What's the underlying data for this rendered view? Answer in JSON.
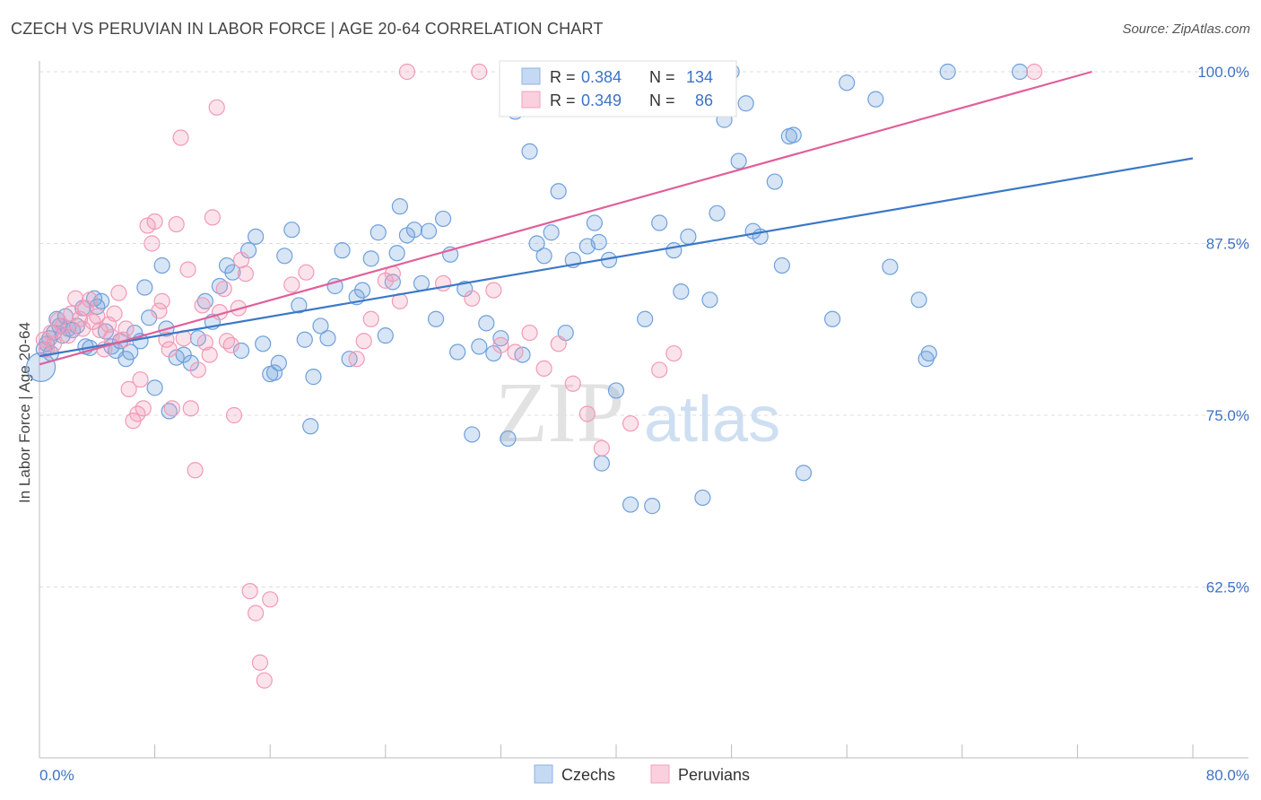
{
  "title": "CZECH VS PERUVIAN IN LABOR FORCE | AGE 20-64 CORRELATION CHART",
  "source": "Source: ZipAtlas.com",
  "watermark": {
    "zip": "ZIP",
    "atlas": "atlas"
  },
  "chart_data": {
    "type": "scatter",
    "title": "CZECH VS PERUVIAN IN LABOR FORCE | AGE 20-64 CORRELATION CHART",
    "xlabel": "",
    "ylabel": "In Labor Force | Age 20-64",
    "xlim": [
      0,
      80
    ],
    "ylim": [
      50,
      100
    ],
    "x_tick_labels": {
      "min": "0.0%",
      "max": "80.0%"
    },
    "y_ticks": [
      62.5,
      75.0,
      87.5,
      100.0
    ],
    "y_tick_labels": [
      "62.5%",
      "75.0%",
      "87.5%",
      "100.0%"
    ],
    "grid": true,
    "legend_position": "bottom-center",
    "stats_box": {
      "r_label": "R =",
      "n_label": "N =",
      "rows": [
        {
          "series": "Czechs",
          "r": "0.384",
          "n": "134"
        },
        {
          "series": "Peruvians",
          "r": "0.349",
          "n": "86"
        }
      ]
    },
    "series": [
      {
        "name": "Czechs",
        "color": "#6fa0dc",
        "line_color": "#3b78c8",
        "trend": {
          "x": [
            0,
            80
          ],
          "y": [
            79.3,
            93.7
          ]
        },
        "points": [
          [
            0.3,
            79.8
          ],
          [
            0.5,
            80.2
          ],
          [
            0.7,
            80.6
          ],
          [
            0.8,
            79.5
          ],
          [
            1,
            81
          ],
          [
            1.2,
            82
          ],
          [
            1.4,
            81.5
          ],
          [
            1.6,
            80.8
          ],
          [
            1.8,
            82.2
          ],
          [
            2,
            81.3
          ],
          [
            2.3,
            81.2
          ],
          [
            2.6,
            81.5
          ],
          [
            3,
            82.8
          ],
          [
            3.2,
            80
          ],
          [
            3.5,
            79.9
          ],
          [
            3.8,
            83.5
          ],
          [
            4,
            82.9
          ],
          [
            4.3,
            83.3
          ],
          [
            4.6,
            81.1
          ],
          [
            5,
            80
          ],
          [
            5.3,
            79.7
          ],
          [
            5.6,
            80.4
          ],
          [
            6,
            79.1
          ],
          [
            6.3,
            79.6
          ],
          [
            6.6,
            81
          ],
          [
            7,
            80.4
          ],
          [
            7.3,
            84.3
          ],
          [
            7.6,
            82.1
          ],
          [
            8,
            77
          ],
          [
            8.5,
            85.9
          ],
          [
            8.8,
            81.3
          ],
          [
            9,
            75.3
          ],
          [
            9.5,
            79.2
          ],
          [
            10,
            79.4
          ],
          [
            10.5,
            78.8
          ],
          [
            11,
            80.6
          ],
          [
            11.5,
            83.3
          ],
          [
            12,
            81.8
          ],
          [
            12.5,
            84.4
          ],
          [
            13,
            85.9
          ],
          [
            13.4,
            85.4
          ],
          [
            14,
            79.7
          ],
          [
            14.5,
            87
          ],
          [
            15,
            88
          ],
          [
            15.5,
            80.2
          ],
          [
            16,
            78
          ],
          [
            16.3,
            78.1
          ],
          [
            16.6,
            78.8
          ],
          [
            17,
            86.6
          ],
          [
            17.5,
            88.5
          ],
          [
            18,
            83
          ],
          [
            18.4,
            80.5
          ],
          [
            18.8,
            74.2
          ],
          [
            19,
            77.8
          ],
          [
            19.5,
            81.5
          ],
          [
            20,
            80.6
          ],
          [
            20.5,
            84.4
          ],
          [
            21,
            87
          ],
          [
            21.5,
            79.1
          ],
          [
            22,
            83.6
          ],
          [
            22.4,
            84.1
          ],
          [
            23,
            86.4
          ],
          [
            23.5,
            88.3
          ],
          [
            24,
            80.8
          ],
          [
            24.5,
            84.7
          ],
          [
            24.8,
            86.8
          ],
          [
            25,
            90.2
          ],
          [
            25.5,
            88.1
          ],
          [
            26,
            88.5
          ],
          [
            26.5,
            84.6
          ],
          [
            27,
            88.4
          ],
          [
            27.5,
            82
          ],
          [
            28,
            89.3
          ],
          [
            28.5,
            86.7
          ],
          [
            29,
            79.6
          ],
          [
            29.5,
            84.2
          ],
          [
            30,
            73.6
          ],
          [
            30.5,
            80
          ],
          [
            31,
            81.7
          ],
          [
            31.5,
            79.5
          ],
          [
            32,
            80.6
          ],
          [
            32.5,
            73.3
          ],
          [
            33,
            97.1
          ],
          [
            33.5,
            79.4
          ],
          [
            34,
            94.2
          ],
          [
            34.5,
            87.5
          ],
          [
            35,
            86.6
          ],
          [
            35.5,
            88.3
          ],
          [
            36,
            91.3
          ],
          [
            36.5,
            81
          ],
          [
            37,
            86.3
          ],
          [
            38,
            87.3
          ],
          [
            38.5,
            89
          ],
          [
            38.8,
            87.6
          ],
          [
            39,
            71.5
          ],
          [
            39.5,
            86.3
          ],
          [
            40,
            76.8
          ],
          [
            41,
            68.5
          ],
          [
            42,
            82
          ],
          [
            42.5,
            68.4
          ],
          [
            43,
            89
          ],
          [
            44,
            87
          ],
          [
            44.5,
            84
          ],
          [
            45,
            88
          ],
          [
            45.5,
            100
          ],
          [
            46,
            69
          ],
          [
            46.5,
            83.4
          ],
          [
            47,
            89.7
          ],
          [
            47.5,
            96.5
          ],
          [
            48,
            100
          ],
          [
            48.5,
            93.5
          ],
          [
            49,
            97.7
          ],
          [
            49.5,
            88.4
          ],
          [
            50,
            88
          ],
          [
            51,
            92
          ],
          [
            51.5,
            85.9
          ],
          [
            52,
            95.3
          ],
          [
            52.3,
            95.4
          ],
          [
            53,
            70.8
          ],
          [
            55,
            82
          ],
          [
            56,
            99.2
          ],
          [
            58,
            98
          ],
          [
            59,
            85.8
          ],
          [
            61,
            83.4
          ],
          [
            61.5,
            79.1
          ],
          [
            61.7,
            79.5
          ],
          [
            63,
            100
          ],
          [
            68,
            100
          ],
          [
            0.1,
            78.5
          ]
        ],
        "big_point": [
          0.1,
          78.5
        ]
      },
      {
        "name": "Peruvians",
        "color": "#f29ab6",
        "line_color": "#e0609a",
        "trend": {
          "x": [
            0,
            73
          ],
          "y": [
            78.7,
            100
          ]
        },
        "points": [
          [
            0.3,
            80.5
          ],
          [
            0.5,
            79.8
          ],
          [
            0.8,
            81
          ],
          [
            1,
            80.2
          ],
          [
            1.3,
            81.9
          ],
          [
            1.6,
            81.5
          ],
          [
            2,
            80.8
          ],
          [
            2.2,
            82.4
          ],
          [
            2.5,
            83.5
          ],
          [
            2.8,
            82
          ],
          [
            3,
            81.3
          ],
          [
            3.2,
            82.8
          ],
          [
            3.5,
            83.4
          ],
          [
            3.7,
            81.8
          ],
          [
            4,
            82.2
          ],
          [
            4.2,
            81.2
          ],
          [
            4.5,
            79.8
          ],
          [
            4.8,
            81.6
          ],
          [
            5,
            80.7
          ],
          [
            5.2,
            82.4
          ],
          [
            5.5,
            83.9
          ],
          [
            5.8,
            80.5
          ],
          [
            6,
            81.3
          ],
          [
            6.2,
            76.9
          ],
          [
            6.5,
            74.6
          ],
          [
            6.8,
            75.1
          ],
          [
            7,
            77.6
          ],
          [
            7.2,
            75.5
          ],
          [
            7.5,
            88.8
          ],
          [
            7.8,
            87.5
          ],
          [
            8,
            89.1
          ],
          [
            8.3,
            82.6
          ],
          [
            8.5,
            83.3
          ],
          [
            8.8,
            80.5
          ],
          [
            9,
            79.8
          ],
          [
            9.2,
            75.5
          ],
          [
            9.5,
            88.9
          ],
          [
            9.8,
            95.2
          ],
          [
            10,
            80.6
          ],
          [
            10.3,
            85.6
          ],
          [
            10.5,
            75.5
          ],
          [
            10.8,
            71
          ],
          [
            11,
            78.3
          ],
          [
            11.3,
            83
          ],
          [
            11.5,
            80.3
          ],
          [
            11.8,
            79.4
          ],
          [
            12,
            89.4
          ],
          [
            12.3,
            97.4
          ],
          [
            12.5,
            82.5
          ],
          [
            12.8,
            84.2
          ],
          [
            13,
            80.4
          ],
          [
            13.3,
            80.1
          ],
          [
            13.5,
            75
          ],
          [
            13.8,
            82.8
          ],
          [
            14,
            86.3
          ],
          [
            14.3,
            85.3
          ],
          [
            14.6,
            62.2
          ],
          [
            15,
            60.6
          ],
          [
            15.3,
            57
          ],
          [
            15.6,
            55.7
          ],
          [
            16,
            61.6
          ],
          [
            17.5,
            84.5
          ],
          [
            18.5,
            85.4
          ],
          [
            22,
            79.1
          ],
          [
            22.5,
            80.4
          ],
          [
            23,
            82
          ],
          [
            24,
            84.8
          ],
          [
            24.5,
            85.3
          ],
          [
            25,
            83.3
          ],
          [
            25.5,
            100
          ],
          [
            28,
            84.6
          ],
          [
            30,
            83.5
          ],
          [
            30.5,
            100
          ],
          [
            31.5,
            84.1
          ],
          [
            32,
            80.1
          ],
          [
            33,
            79.6
          ],
          [
            34,
            81
          ],
          [
            35,
            78.4
          ],
          [
            36,
            80.2
          ],
          [
            37,
            77.3
          ],
          [
            38,
            75.1
          ],
          [
            39,
            72.6
          ],
          [
            41,
            74.4
          ],
          [
            43,
            78.3
          ],
          [
            44,
            79.5
          ],
          [
            69,
            100
          ]
        ]
      }
    ]
  }
}
